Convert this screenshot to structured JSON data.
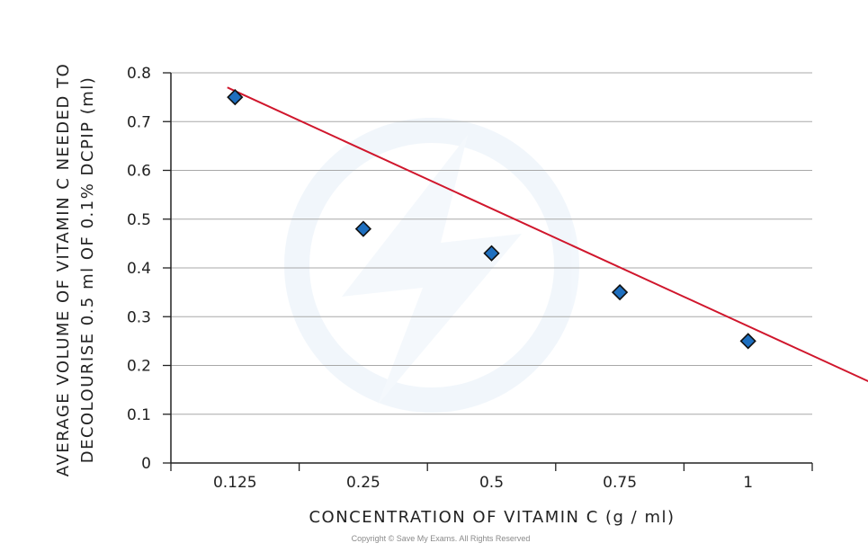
{
  "chart_data": {
    "type": "scatter",
    "x_axis_type": "category",
    "categories": [
      "0.125",
      "0.25",
      "0.5",
      "0.75",
      "1"
    ],
    "values": [
      0.75,
      0.48,
      0.43,
      0.35,
      0.25
    ],
    "trendline": {
      "type": "linear",
      "from": [
        0.5,
        0.77
      ],
      "to": [
        5.5,
        0.16
      ]
    },
    "xlabel": "CONCENTRATION OF VITAMIN C (g / ml)",
    "ylabel_line1": "AVERAGE VOLUME OF VITAMIN C NEEDED TO",
    "ylabel_line2": "DECOLOURISE 0.5 ml OF 0.1% DCPIP (ml)",
    "yticks": [
      "0",
      "0.1",
      "0.2",
      "0.3",
      "0.4",
      "0.5",
      "0.6",
      "0.7",
      "0.8"
    ],
    "ylim": [
      0,
      0.8
    ],
    "grid": true,
    "marker_color": "#1e6fbf",
    "trendline_color": "#d0162c",
    "watermark": "Save My Exams logo"
  },
  "footer": {
    "copyright": "Copyright © Save My Exams. All Rights Reserved"
  }
}
